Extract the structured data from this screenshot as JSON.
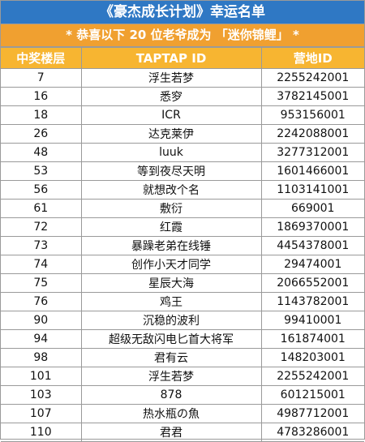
{
  "title": "《豪杰成长计划》幸运名单",
  "subtitle": "* 恭喜以下 20 位老爷成为 「迷你锦鲤」 *",
  "table": {
    "header": [
      "中奖楼层",
      "TAPTAP ID",
      "营地ID"
    ],
    "rows": [
      [
        "7",
        "浮生若梦",
        "2255242001"
      ],
      [
        "16",
        "悉穸",
        "3782145001"
      ],
      [
        "18",
        "ICR",
        "953156001"
      ],
      [
        "26",
        "达克莱伊",
        "2242088001"
      ],
      [
        "48",
        "luuk",
        "3277312001"
      ],
      [
        "53",
        "等到夜尽天明",
        "1601466001"
      ],
      [
        "56",
        "就想改个名",
        "1103141001"
      ],
      [
        "61",
        "敷衍",
        "669001"
      ],
      [
        "72",
        "红霞",
        "1869370001"
      ],
      [
        "73",
        "暴躁老弟在线锤",
        "4454378001"
      ],
      [
        "74",
        "创作小天才同学",
        "29474001"
      ],
      [
        "75",
        "星辰大海",
        "2066552001"
      ],
      [
        "76",
        "鸡王",
        "1143782001"
      ],
      [
        "90",
        "沉稳的波利",
        "99410001"
      ],
      [
        "94",
        "超级无敌闪电匕首大将军",
        "161874001"
      ],
      [
        "98",
        "君有云",
        "148203001"
      ],
      [
        "101",
        "浮生若梦",
        "2255242001"
      ],
      [
        "103",
        "878",
        "601215001"
      ],
      [
        "107",
        "热水瓶の魚",
        "4987712001"
      ],
      [
        "110",
        "君君",
        "4783286001"
      ]
    ]
  }
}
